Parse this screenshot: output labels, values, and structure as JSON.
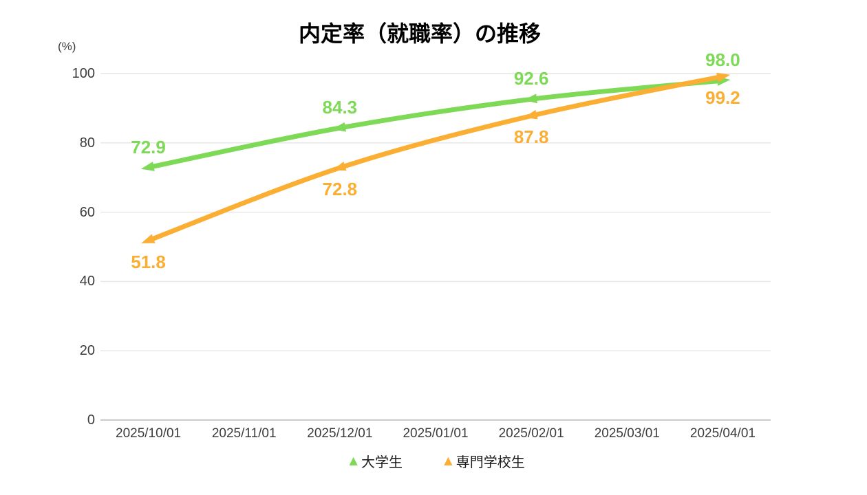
{
  "chart_data": {
    "type": "line",
    "title": "内定率（就職率）の推移",
    "unit_label": "(%)",
    "categories": [
      "2025/10/01",
      "2025/11/01",
      "2025/12/01",
      "2025/01/01",
      "2025/02/01",
      "2025/03/01",
      "2025/04/01"
    ],
    "x_indices": [
      0,
      2,
      4,
      6
    ],
    "yticks": [
      0,
      20,
      40,
      60,
      80,
      100
    ],
    "ylim": [
      0,
      100
    ],
    "grid": true,
    "legend_position": "bottom",
    "series": [
      {
        "name": "大学生",
        "color": "#7ED957",
        "values": [
          72.9,
          84.3,
          92.6,
          98.0
        ],
        "value_labels": [
          "72.9",
          "84.3",
          "92.6",
          "98.0"
        ],
        "label_side": "above",
        "marker": "triangle"
      },
      {
        "name": "専門学校生",
        "color": "#FBAE34",
        "values": [
          51.8,
          72.8,
          87.8,
          99.2
        ],
        "value_labels": [
          "51.8",
          "72.8",
          "87.8",
          "99.2"
        ],
        "label_side": "below",
        "marker": "triangle"
      }
    ],
    "colors": {
      "gridline": "#E6E6E6",
      "baseline": "#B9B9B9",
      "tick_text": "#3C3C3C",
      "title_text": "#000000"
    }
  }
}
